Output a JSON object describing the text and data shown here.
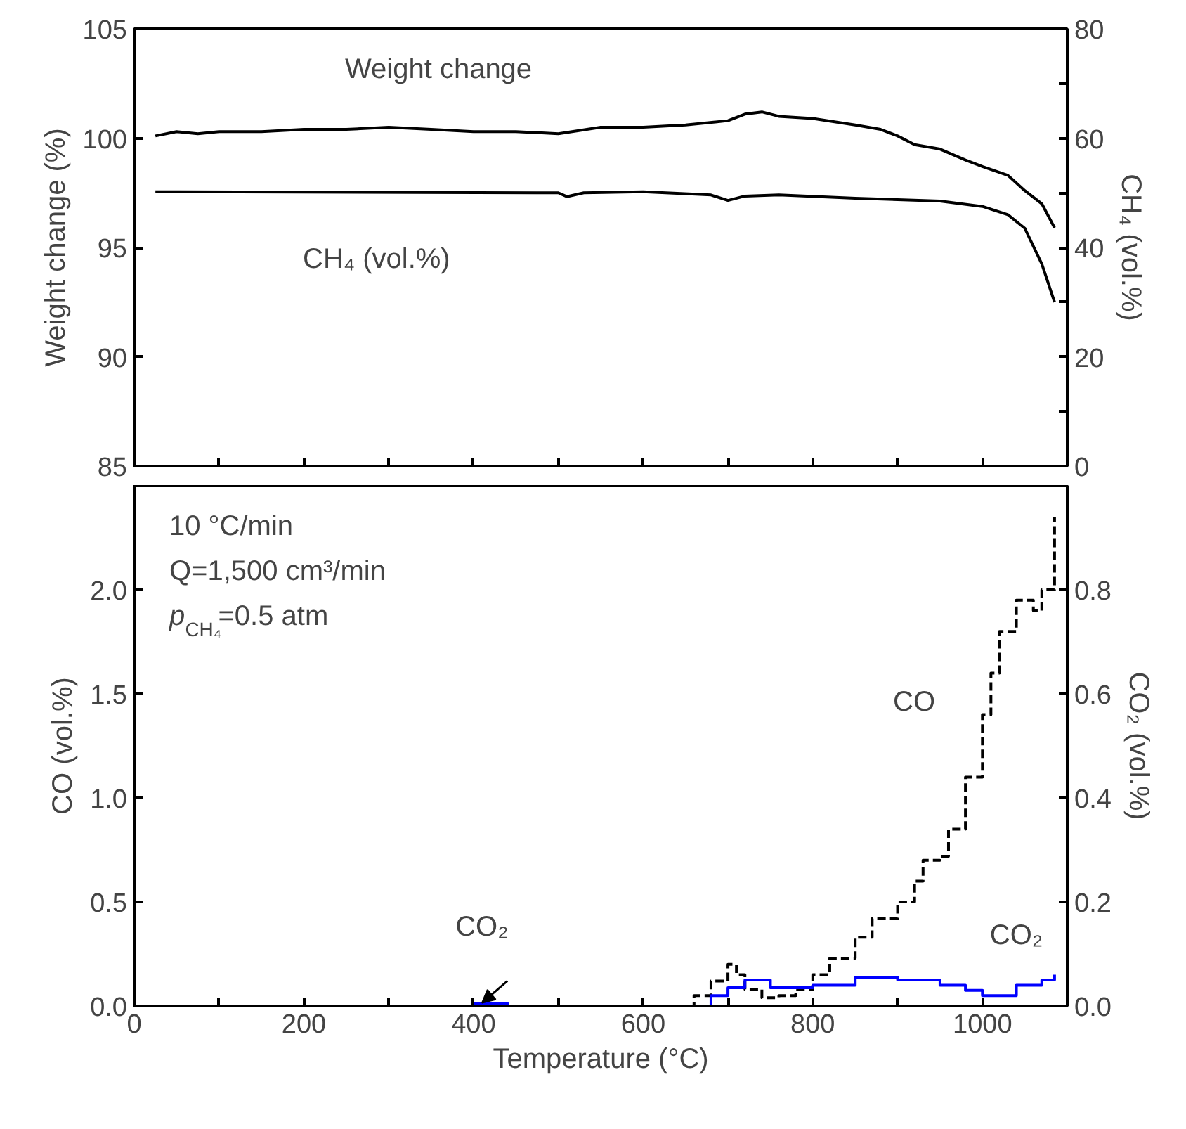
{
  "chart_data": [
    {
      "type": "line",
      "ylabel": "Weight change (%)",
      "y2label": "CH₄ (vol.%)",
      "xlim": [
        0,
        1100
      ],
      "xticks": [
        0,
        {
          "value": 100,
          "label": null
        },
        200,
        {
          "value": 300,
          "label": null
        },
        400,
        {
          "value": 500,
          "label": null
        },
        600,
        {
          "value": 700,
          "label": null
        },
        800,
        {
          "value": 900,
          "label": null
        },
        1000,
        {
          "value": 1100,
          "label": null
        }
      ],
      "ylim": [
        85,
        105
      ],
      "yticks": [
        85,
        90,
        95,
        100,
        105
      ],
      "y2lim": [
        0,
        80
      ],
      "y2ticks": [
        0,
        {
          "value": 10,
          "label": null
        },
        20,
        {
          "value": 30,
          "label": null
        },
        40,
        {
          "value": 50,
          "label": null
        },
        60,
        {
          "value": 70,
          "label": null
        },
        80
      ],
      "tick_labels": "y",
      "annotations": [
        "Weight change",
        "CH₄ (vol.%)"
      ],
      "series": [
        {
          "color": "#000000",
          "x": [
            25,
            50,
            75,
            100,
            150,
            200,
            250,
            300,
            350,
            400,
            450,
            500,
            550,
            600,
            650,
            700,
            720,
            740,
            760,
            800,
            850,
            880,
            900,
            920,
            950,
            980,
            1000,
            1030,
            1050,
            1070,
            1085
          ],
          "values": [
            100.1,
            100.3,
            100.2,
            100.3,
            100.3,
            100.4,
            100.4,
            100.5,
            100.4,
            100.3,
            100.3,
            100.2,
            100.5,
            100.5,
            100.6,
            100.8,
            101.1,
            101.2,
            101.0,
            100.9,
            100.6,
            100.4,
            100.1,
            99.7,
            99.5,
            99.0,
            98.7,
            98.3,
            97.6,
            97.0,
            95.9
          ]
        },
        {
          "color": "#000000",
          "axis": "y2",
          "x": [
            25,
            500,
            510,
            530,
            600,
            680,
            700,
            720,
            760,
            850,
            950,
            1000,
            1030,
            1050,
            1070,
            1085
          ],
          "values": [
            50.2,
            50.0,
            49.3,
            50.0,
            50.2,
            49.6,
            48.6,
            49.4,
            49.6,
            49.0,
            48.5,
            47.5,
            46.0,
            43.5,
            37,
            30
          ]
        }
      ]
    },
    {
      "type": "step",
      "xlabel": "Temperature (°C)",
      "ylabel": "CO (vol.%)",
      "y2label": "CO₂ (vol.%)",
      "xlim": [
        0,
        1100
      ],
      "xticks": [
        0,
        {
          "value": 100,
          "label": null
        },
        200,
        {
          "value": 300,
          "label": null
        },
        400,
        {
          "value": 500,
          "label": null
        },
        600,
        {
          "value": 700,
          "label": null
        },
        800,
        {
          "value": 900,
          "label": null
        },
        1000,
        {
          "value": 1100,
          "label": null
        }
      ],
      "ylim": [
        0,
        2.5
      ],
      "yticks": [
        "0.0",
        {
          "value": 0.5,
          "label": "0.5"
        },
        {
          "value": 1.0,
          "label": "1.0"
        },
        {
          "value": 1.5,
          "label": "1.5"
        },
        {
          "value": 2.0,
          "label": "2.0"
        }
      ],
      "y2lim": [
        0,
        1.0
      ],
      "y2ticks": [
        {
          "value": 0,
          "label": "0.0"
        },
        {
          "value": 0.2,
          "label": "0.2"
        },
        {
          "value": 0.4,
          "label": "0.4"
        },
        {
          "value": 0.6,
          "label": "0.6"
        },
        {
          "value": 0.8,
          "label": "0.8"
        }
      ],
      "annotations": [
        "10 °C/min",
        "Q=1,500 cm³/min",
        "p$_{CH₄}$=0.5 atm",
        "CO",
        {
          "text": "CO₂",
          "x": 410,
          "y": 0.0
        },
        {
          "text": "CO₂",
          "x": 1040,
          "y": 0.06
        }
      ],
      "series": [
        {
          "color": "#000000",
          "line_style": "dashed",
          "x": [
            640,
            660,
            680,
            700,
            710,
            720,
            740,
            760,
            780,
            800,
            820,
            850,
            870,
            900,
            920,
            930,
            950,
            960,
            980,
            1000,
            1010,
            1020,
            1040,
            1060,
            1070,
            1085
          ],
          "values": [
            0.0,
            0.05,
            0.12,
            0.2,
            0.15,
            0.08,
            0.04,
            0.05,
            0.08,
            0.15,
            0.23,
            0.33,
            0.42,
            0.5,
            0.6,
            0.7,
            0.72,
            0.85,
            1.1,
            1.4,
            1.6,
            1.8,
            1.95,
            1.9,
            2.0,
            2.35
          ]
        },
        {
          "color": "#0000ff",
          "axis": "y2",
          "x": [
            390,
            400,
            440,
            450,
            650,
            680,
            700,
            720,
            750,
            800,
            850,
            900,
            950,
            980,
            1000,
            1040,
            1070,
            1085
          ],
          "values": [
            0.0,
            0.005,
            0.0,
            0.0,
            0.0,
            0.02,
            0.035,
            0.05,
            0.035,
            0.04,
            0.055,
            0.05,
            0.04,
            0.03,
            0.02,
            0.04,
            0.05,
            0.06
          ]
        }
      ]
    }
  ]
}
